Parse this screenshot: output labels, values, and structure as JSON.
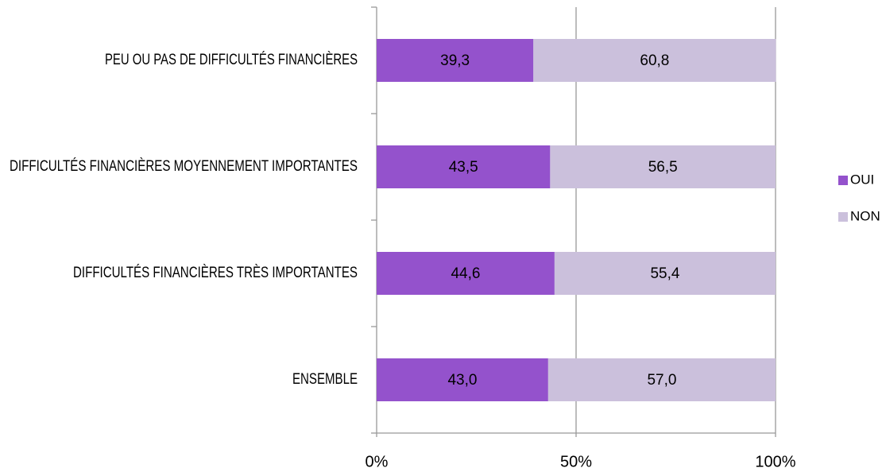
{
  "chart_data": {
    "type": "bar",
    "orientation": "horizontal",
    "stacked": true,
    "categories": [
      "PEU OU PAS DE DIFFICULTÉS FINANCIÈRES",
      "DIFFICULTÉS FINANCIÈRES MOYENNEMENT IMPORTANTES",
      "DIFFICULTÉS FINANCIÈRES TRÈS IMPORTANTES",
      "ENSEMBLE"
    ],
    "series": [
      {
        "name": "OUI",
        "color": "#9452cc",
        "values": [
          39.3,
          43.5,
          44.6,
          43.0
        ],
        "value_labels": [
          "39,3",
          "43,5",
          "44,6",
          "43,0"
        ]
      },
      {
        "name": "NON",
        "color": "#cbc0dc",
        "values": [
          60.8,
          56.5,
          55.4,
          57.0
        ],
        "value_labels": [
          "60,8",
          "56,5",
          "55,4",
          "57,0"
        ]
      }
    ],
    "xlim": [
      0,
      100
    ],
    "xticks": [
      {
        "value": 0,
        "label": "0%"
      },
      {
        "value": 50,
        "label": "50%"
      },
      {
        "value": 100,
        "label": "100%"
      }
    ],
    "grid": true,
    "legend": "right"
  }
}
